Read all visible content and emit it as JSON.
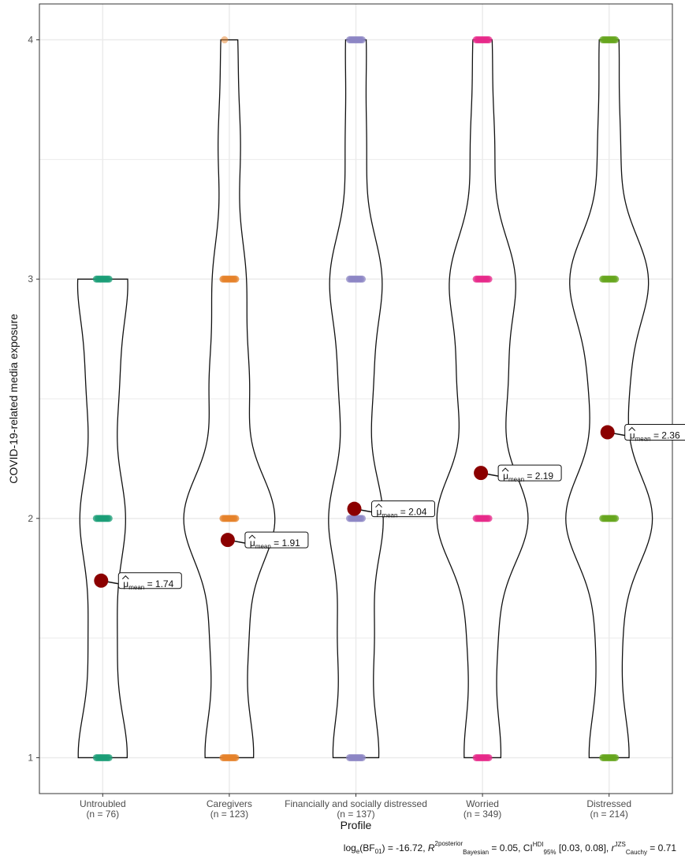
{
  "chart_data": {
    "type": "violin",
    "xlabel": "Profile",
    "ylabel": "COVID-19-related media exposure",
    "ylim": [
      0.85,
      4.15
    ],
    "yticks": [
      1,
      2,
      3,
      4
    ],
    "grid": true,
    "categories": [
      {
        "name": "Untroubled",
        "n_label": "(n = 76)",
        "color": "#1b9e77",
        "mean": 1.74,
        "mean_value": "1.74",
        "observed_values": [
          1,
          2,
          3
        ]
      },
      {
        "name": "Caregivers",
        "n_label": "(n = 123)",
        "color": "#e6822a",
        "mean": 1.91,
        "mean_value": "1.91",
        "observed_values": [
          1,
          2,
          3,
          4
        ]
      },
      {
        "name": "Financially and socially distressed",
        "n_label": "(n = 137)",
        "color": "#8c86c4",
        "mean": 2.04,
        "mean_value": "2.04",
        "observed_values": [
          1,
          2,
          3,
          4
        ]
      },
      {
        "name": "Worried",
        "n_label": "(n = 349)",
        "color": "#e7298a",
        "mean": 2.19,
        "mean_value": "2.19",
        "observed_values": [
          1,
          2,
          3,
          4
        ]
      },
      {
        "name": "Distressed",
        "n_label": "(n = 214)",
        "color": "#66a61e",
        "mean": 2.36,
        "mean_value": "2.36",
        "observed_values": [
          1,
          2,
          3,
          4
        ]
      }
    ],
    "mean_label_prefix": "μ",
    "mean_label_sub": "mean",
    "mean_label_sep": " = ",
    "mean_point_color": "#8b0000",
    "stat": {
      "bf_main": "log",
      "bf_sub": "e",
      "bf_rest": "(BF",
      "bf_sub2": "01",
      "bf_value": ") = -16.72, ",
      "r2_main": "R",
      "r2_sup": "2",
      "r2_sup2": "posterior",
      "r2_sub": "Bayesian",
      "r2_value": " = 0.05, ",
      "ci_main": "CI",
      "ci_sup": "HDI",
      "ci_sub": "95%",
      "ci_value": " [0.03, 0.08], ",
      "r_main": "r",
      "r_sup": "JZS",
      "r_sub": "Cauchy",
      "r_value": " = 0.71"
    }
  }
}
